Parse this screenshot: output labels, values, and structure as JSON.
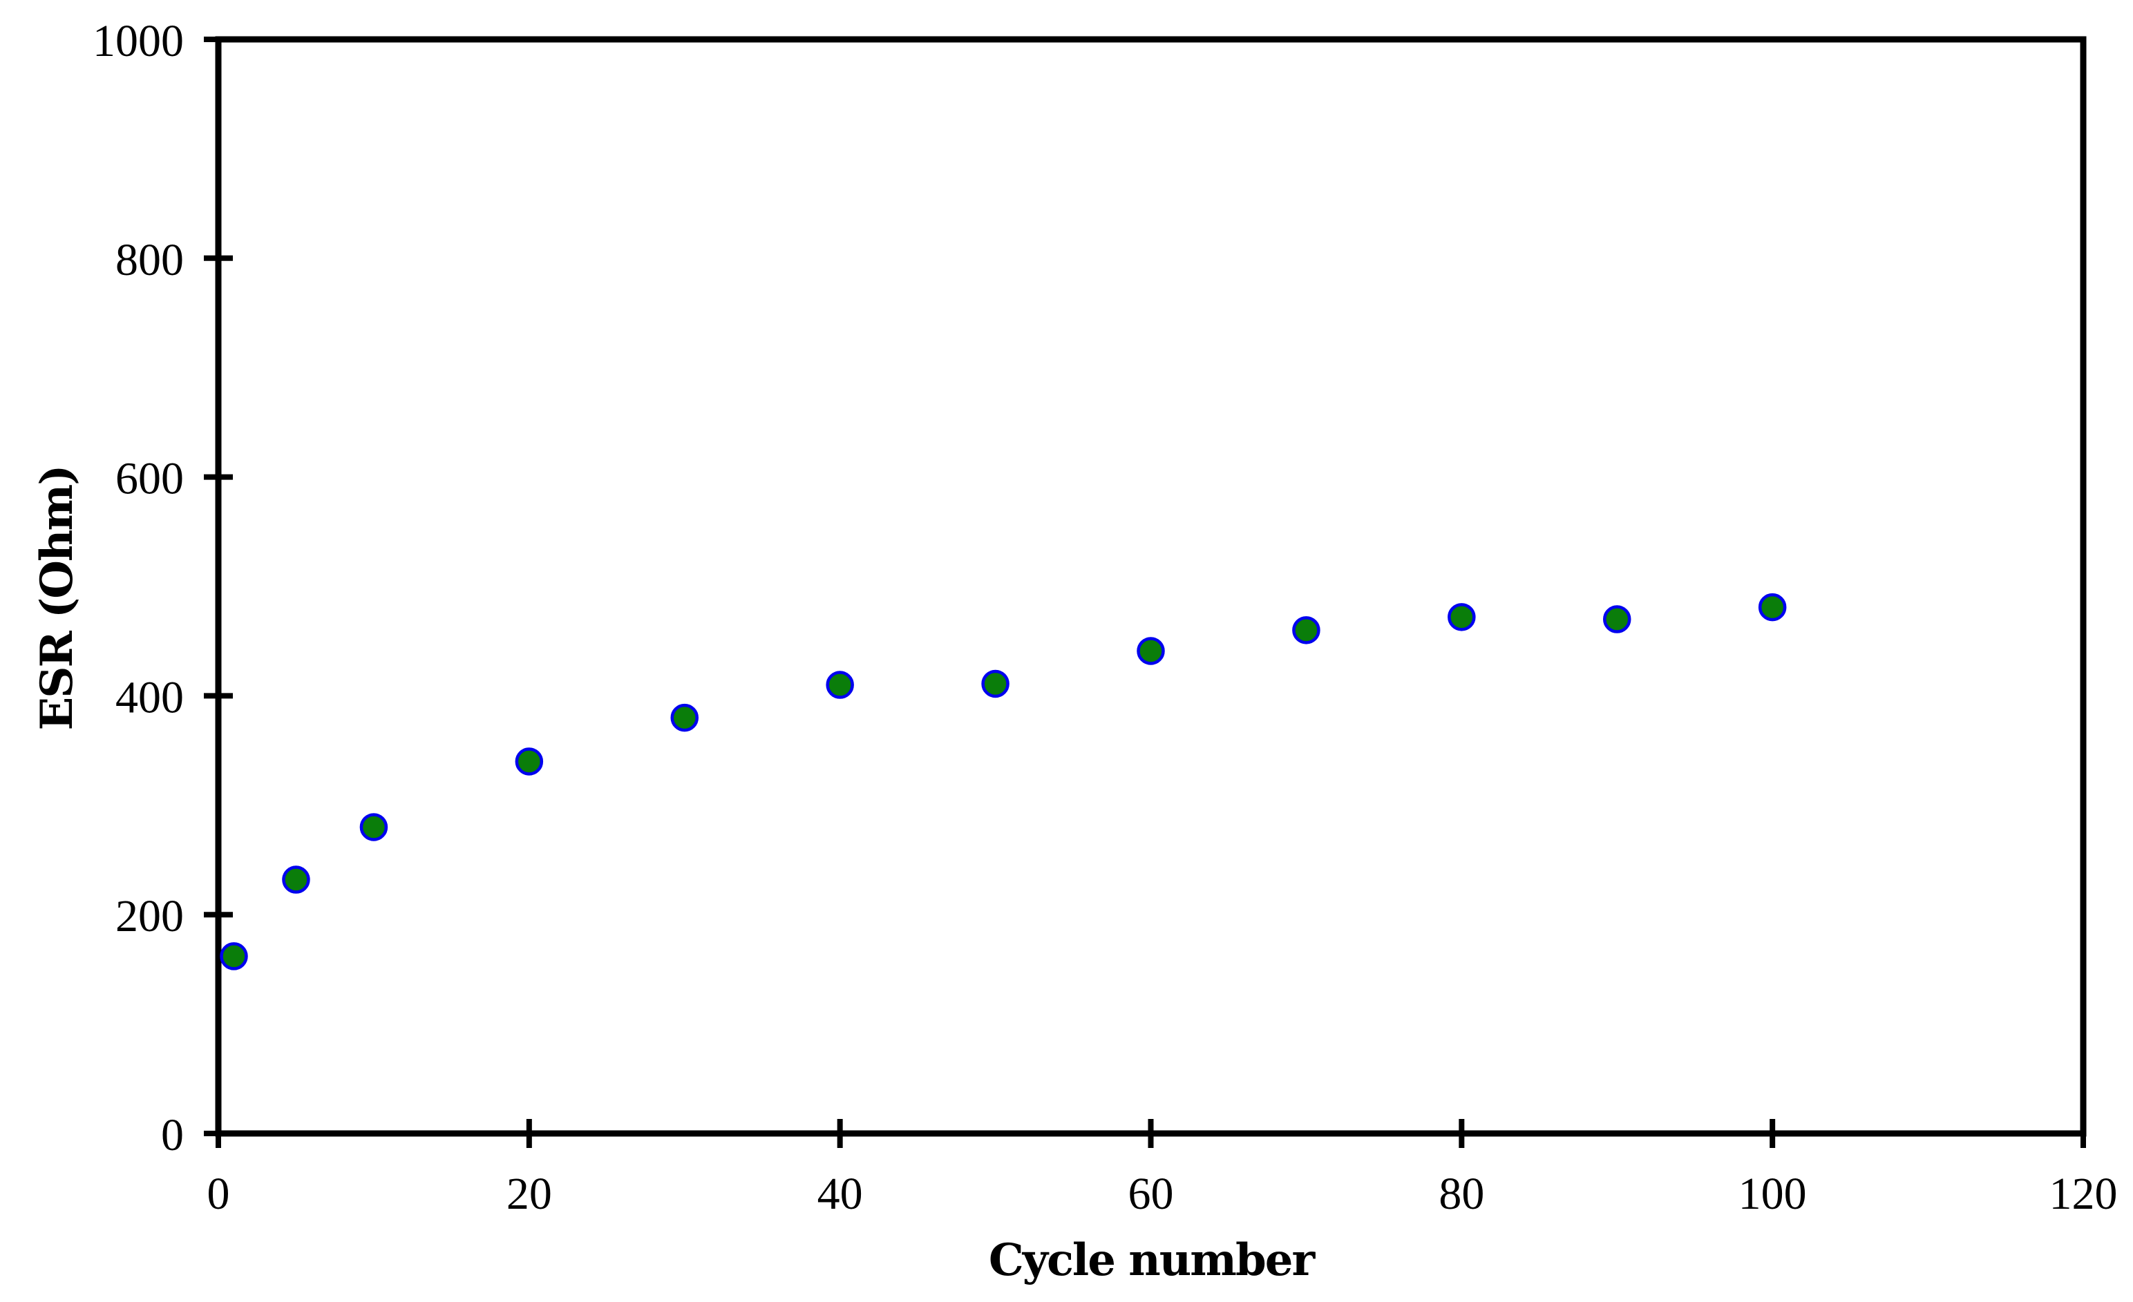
{
  "figure": {
    "background": "#ffffff",
    "axis_color": "#000000",
    "tick_label_color": "#000000"
  },
  "chart_data": {
    "type": "scatter",
    "xlabel": "Cycle number",
    "ylabel": "ESR (Ohm)",
    "xlim": [
      0,
      120
    ],
    "ylim": [
      0,
      1000
    ],
    "x_ticks": [
      0,
      20,
      40,
      60,
      80,
      100,
      120
    ],
    "y_ticks": [
      0,
      200,
      400,
      600,
      800,
      1000
    ],
    "grid": false,
    "legend_position": "none",
    "frame": "full-box",
    "tick_style": "crossing",
    "series": [
      {
        "name": "ESR",
        "marker": "circle",
        "marker_fill": "#0a7d0a",
        "marker_edge": "#0000f0",
        "points": [
          {
            "x": 1,
            "y": 162
          },
          {
            "x": 5,
            "y": 232
          },
          {
            "x": 10,
            "y": 280
          },
          {
            "x": 20,
            "y": 340
          },
          {
            "x": 30,
            "y": 380
          },
          {
            "x": 40,
            "y": 410
          },
          {
            "x": 50,
            "y": 411
          },
          {
            "x": 60,
            "y": 441
          },
          {
            "x": 70,
            "y": 460
          },
          {
            "x": 80,
            "y": 472
          },
          {
            "x": 90,
            "y": 470
          },
          {
            "x": 100,
            "y": 481
          }
        ]
      }
    ]
  }
}
